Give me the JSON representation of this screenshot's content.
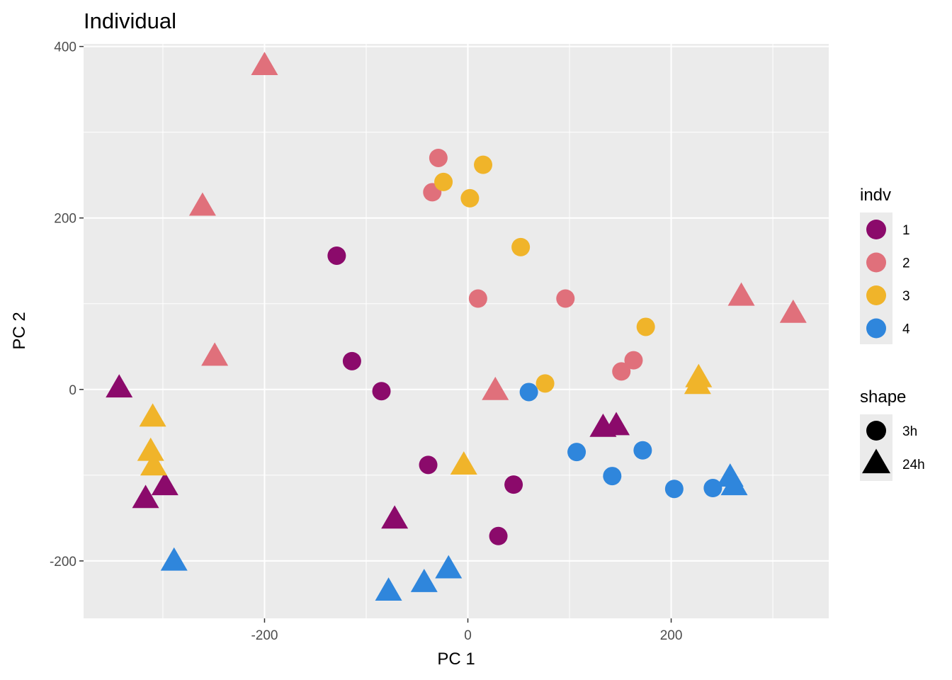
{
  "chart_data": {
    "type": "scatter",
    "title": "Individual",
    "xlabel": "PC 1",
    "ylabel": "PC 2",
    "xlim": [
      -378,
      355
    ],
    "ylim": [
      -267,
      403
    ],
    "x_ticks": [
      -200,
      0,
      200
    ],
    "y_ticks": [
      -200,
      0,
      200,
      400
    ],
    "x_tick_labels": [
      "-200",
      "0",
      "200"
    ],
    "y_tick_labels": [
      "-200",
      "0",
      "200",
      "400"
    ],
    "grid": true,
    "background": "#ebebeb",
    "legend_position": "right",
    "legends": [
      {
        "title": "indv",
        "kind": "color",
        "entries": [
          {
            "label": "1",
            "color": "#8b0a6b"
          },
          {
            "label": "2",
            "color": "#e0707b"
          },
          {
            "label": "3",
            "color": "#f0b42a"
          },
          {
            "label": "4",
            "color": "#2f86dc"
          }
        ]
      },
      {
        "title": "shape",
        "kind": "shape",
        "entries": [
          {
            "label": "3h",
            "shape": "circle"
          },
          {
            "label": "24h",
            "shape": "triangle"
          }
        ]
      }
    ],
    "series": [
      {
        "indv": "1",
        "color": "#8b0a6b",
        "points": [
          {
            "x": -129,
            "y": 156,
            "shape": "3h"
          },
          {
            "x": -114,
            "y": 33,
            "shape": "3h"
          },
          {
            "x": -85,
            "y": -2,
            "shape": "3h"
          },
          {
            "x": -39,
            "y": -88,
            "shape": "3h"
          },
          {
            "x": 45,
            "y": -111,
            "shape": "3h"
          },
          {
            "x": 30,
            "y": -171,
            "shape": "3h"
          },
          {
            "x": -343,
            "y": 1,
            "shape": "24h"
          },
          {
            "x": -298,
            "y": -113,
            "shape": "24h"
          },
          {
            "x": -317,
            "y": -128,
            "shape": "24h"
          },
          {
            "x": -72,
            "y": -152,
            "shape": "24h"
          },
          {
            "x": 133,
            "y": -45,
            "shape": "24h"
          },
          {
            "x": 146,
            "y": -43,
            "shape": "24h"
          }
        ]
      },
      {
        "indv": "2",
        "color": "#e0707b",
        "points": [
          {
            "x": -29,
            "y": 270,
            "shape": "3h"
          },
          {
            "x": -35,
            "y": 230,
            "shape": "3h"
          },
          {
            "x": 10,
            "y": 106,
            "shape": "3h"
          },
          {
            "x": 96,
            "y": 106,
            "shape": "3h"
          },
          {
            "x": 163,
            "y": 34,
            "shape": "3h"
          },
          {
            "x": 151,
            "y": 21,
            "shape": "3h"
          },
          {
            "x": -200,
            "y": 377,
            "shape": "24h"
          },
          {
            "x": -261,
            "y": 213,
            "shape": "24h"
          },
          {
            "x": -249,
            "y": 38,
            "shape": "24h"
          },
          {
            "x": 27,
            "y": -2,
            "shape": "24h"
          },
          {
            "x": 269,
            "y": 108,
            "shape": "24h"
          },
          {
            "x": 320,
            "y": 88,
            "shape": "24h"
          }
        ]
      },
      {
        "indv": "3",
        "color": "#f0b42a",
        "points": [
          {
            "x": 15,
            "y": 262,
            "shape": "3h"
          },
          {
            "x": -24,
            "y": 242,
            "shape": "3h"
          },
          {
            "x": 2,
            "y": 223,
            "shape": "3h"
          },
          {
            "x": 52,
            "y": 166,
            "shape": "3h"
          },
          {
            "x": 175,
            "y": 73,
            "shape": "3h"
          },
          {
            "x": 76,
            "y": 7,
            "shape": "3h"
          },
          {
            "x": -310,
            "y": -33,
            "shape": "24h"
          },
          {
            "x": -312,
            "y": -73,
            "shape": "24h"
          },
          {
            "x": -309,
            "y": -90,
            "shape": "24h"
          },
          {
            "x": -4,
            "y": -89,
            "shape": "24h"
          },
          {
            "x": 227,
            "y": 13,
            "shape": "24h"
          },
          {
            "x": 226,
            "y": 5,
            "shape": "24h"
          }
        ]
      },
      {
        "indv": "4",
        "color": "#2f86dc",
        "points": [
          {
            "x": 60,
            "y": -3,
            "shape": "3h"
          },
          {
            "x": 107,
            "y": -73,
            "shape": "3h"
          },
          {
            "x": 172,
            "y": -71,
            "shape": "3h"
          },
          {
            "x": 142,
            "y": -101,
            "shape": "3h"
          },
          {
            "x": 203,
            "y": -116,
            "shape": "3h"
          },
          {
            "x": 241,
            "y": -115,
            "shape": "3h"
          },
          {
            "x": -289,
            "y": -201,
            "shape": "24h"
          },
          {
            "x": -78,
            "y": -236,
            "shape": "24h"
          },
          {
            "x": -43,
            "y": -226,
            "shape": "24h"
          },
          {
            "x": -19,
            "y": -210,
            "shape": "24h"
          },
          {
            "x": 258,
            "y": -103,
            "shape": "24h"
          },
          {
            "x": 262,
            "y": -113,
            "shape": "24h"
          }
        ]
      }
    ]
  }
}
